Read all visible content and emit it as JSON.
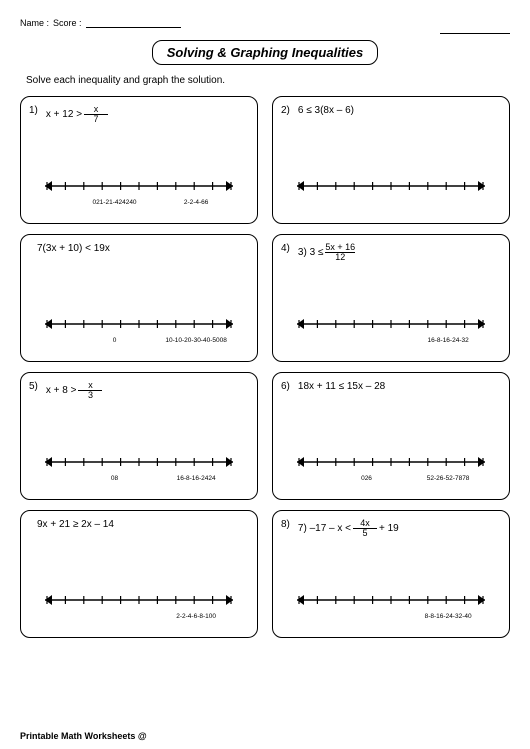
{
  "header": {
    "name_label": "Name :",
    "score_label": "Score :"
  },
  "title": "Solving & Graphing Inequalities",
  "instruction": "Solve each inequality and graph the solution.",
  "footer": "Printable Math Worksheets @",
  "style": {
    "page_bg": "#ffffff",
    "border_color": "#000000",
    "card_radius": 10,
    "tick_count": 11,
    "arrow_size": 5
  },
  "problems": [
    {
      "num": "1)",
      "before": "x + 12 >",
      "frac_num": "x",
      "frac_den": "7",
      "after": "",
      "ticks_left": "021-21-424240",
      "ticks_right": "2-2-4-66"
    },
    {
      "num": "2)",
      "before": "6 ≤ 3(8x – 6)",
      "frac_num": "",
      "frac_den": "",
      "after": "",
      "ticks_left": "",
      "ticks_right": ""
    },
    {
      "num": "",
      "before": "7(3x + 10) < 19x",
      "frac_num": "",
      "frac_den": "",
      "after": "",
      "ticks_left": "0",
      "ticks_right": "10-10-20-30-40-5008"
    },
    {
      "num": "4)",
      "before": "3) 3 ≤",
      "frac_num": "5x + 16",
      "frac_den": "12",
      "after": "",
      "ticks_left": "",
      "ticks_right": "16-8-16-24-32"
    },
    {
      "num": "5)",
      "before": "x + 8 >",
      "frac_num": "x",
      "frac_den": "3",
      "after": "",
      "ticks_left": "08",
      "ticks_right": "16-8-16-2424"
    },
    {
      "num": "6)",
      "before": "18x + 11 ≤ 15x – 28",
      "frac_num": "",
      "frac_den": "",
      "after": "",
      "ticks_left": "026",
      "ticks_right": "52-26-52-7878"
    },
    {
      "num": "",
      "before": "9x + 21 ≥ 2x – 14",
      "frac_num": "",
      "frac_den": "",
      "after": "",
      "ticks_left": "",
      "ticks_right": "2-2-4-6-8-100"
    },
    {
      "num": "8)",
      "before": "7) –17 – x <",
      "frac_num": "4x",
      "frac_den": "5",
      "after": " + 19",
      "ticks_left": "",
      "ticks_right": "8-8-16-24-32-40"
    }
  ]
}
